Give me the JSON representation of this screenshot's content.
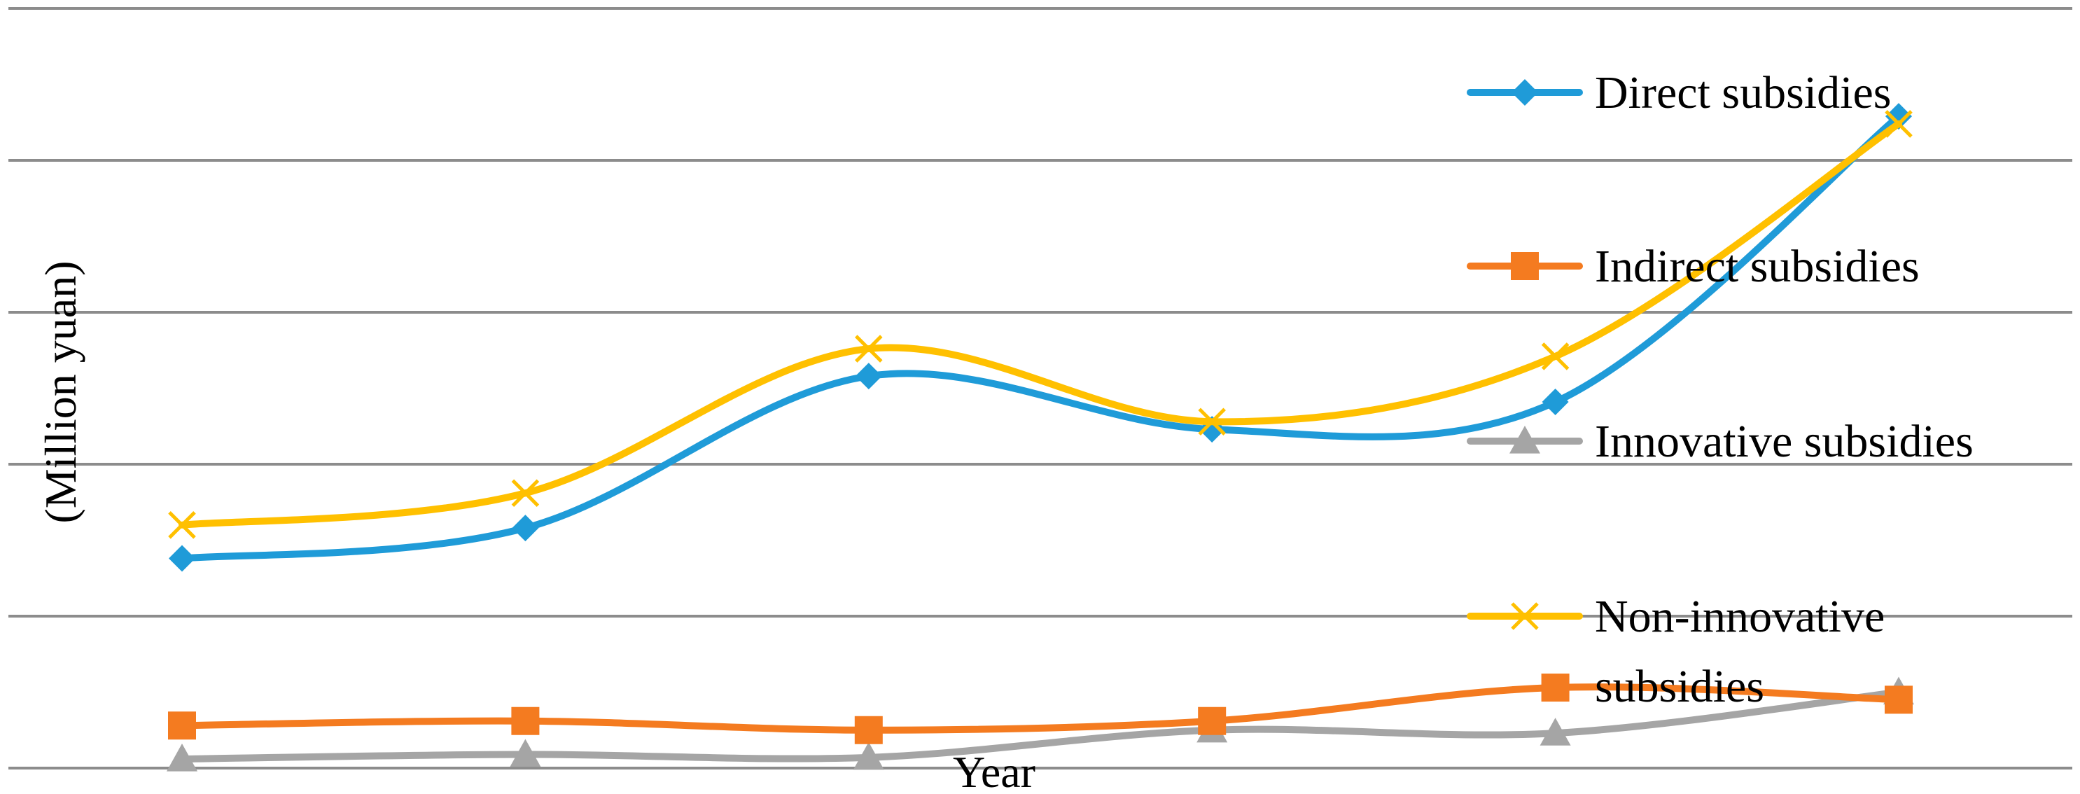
{
  "chart_data": {
    "type": "line",
    "xlabel": "Year",
    "ylabel": "(Million yuan)",
    "x": [
      1,
      2,
      3,
      4,
      5,
      6
    ],
    "ylim": [
      0,
      5
    ],
    "grid": true,
    "legend_position": "right",
    "series": [
      {
        "name": "Direct subsidies",
        "color": "#1f9bd8",
        "marker": "diamond",
        "values": [
          1.38,
          1.58,
          2.58,
          2.23,
          2.41,
          4.29
        ]
      },
      {
        "name": "Indirect subsidies",
        "color": "#f47b20",
        "marker": "square",
        "values": [
          0.28,
          0.31,
          0.25,
          0.31,
          0.53,
          0.45
        ]
      },
      {
        "name": "Innovative subsidies",
        "color": "#a5a5a5",
        "marker": "triangle",
        "values": [
          0.06,
          0.09,
          0.07,
          0.25,
          0.23,
          0.5
        ]
      },
      {
        "name": "Non-innovative subsidies",
        "color": "#ffc000",
        "marker": "x",
        "values": [
          1.6,
          1.81,
          2.76,
          2.28,
          2.71,
          4.24
        ]
      }
    ]
  },
  "legend": {
    "items": [
      {
        "lines": [
          "Direct subsidies"
        ]
      },
      {
        "lines": [
          "Indirect subsidies"
        ]
      },
      {
        "lines": [
          "Innovative subsidies"
        ]
      },
      {
        "lines": [
          "Non-innovative",
          "subsidies"
        ]
      }
    ]
  }
}
